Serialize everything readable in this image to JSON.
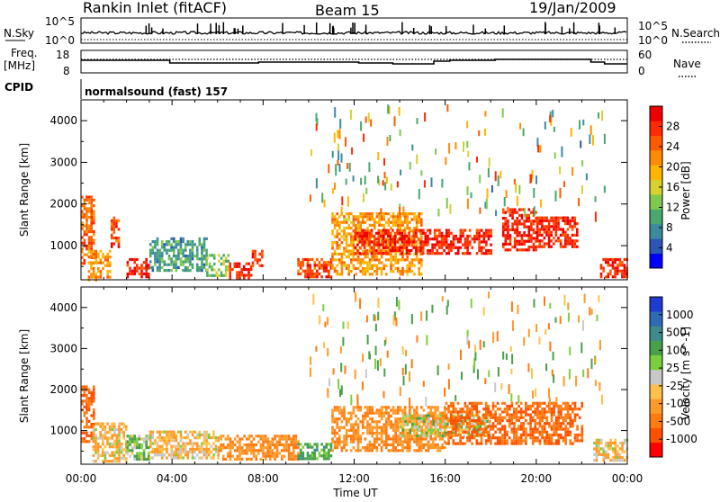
{
  "header": {
    "station": "Rankin Inlet (fitACF)",
    "beam": "Beam 15",
    "date": "19/Jan/2009"
  },
  "strip": {
    "nsky_label": "N.Sky",
    "nsky_ticks": [
      "10^5",
      "10^0"
    ],
    "nsearch_label": "N.Search",
    "nsearch_ticks": [
      "10^5",
      "10^0"
    ],
    "freq_label_1": "Freq.",
    "freq_label_2": "[MHz]",
    "freq_ticks": [
      "18",
      "8"
    ],
    "nave_label": "Nave",
    "nave_ticks": [
      "60",
      "0"
    ],
    "cpid_label": "CPID",
    "cpid_text": "normalsound (fast) 157"
  },
  "axes": {
    "ylabel": "Slant Range [km]",
    "xlabel": "Time UT",
    "xticks": [
      "00:00",
      "04:00",
      "08:00",
      "12:00",
      "16:00",
      "20:00",
      "00:00"
    ],
    "yticks": [
      "4000",
      "3000",
      "2000",
      "1000"
    ]
  },
  "colorbars": {
    "power": {
      "label": "Power [dB]",
      "ticks": [
        "28",
        "24",
        "20",
        "16",
        "12",
        "8",
        "4"
      ],
      "colors": [
        "#0000ff",
        "#2b56b6",
        "#3b8aa0",
        "#48a86e",
        "#7fc94e",
        "#d7d22e",
        "#ffb400",
        "#ff8c00",
        "#ff5a00",
        "#ff2a00",
        "#ee0000"
      ]
    },
    "velocity": {
      "label": "Velocity [m s^-1]",
      "ticks": [
        "1000",
        "500",
        "100",
        "25",
        "-25",
        "-100",
        "-500",
        "-1000"
      ],
      "colors": [
        "#1e3cd0",
        "#2e6ab5",
        "#3c8c8c",
        "#48a048",
        "#7ad03c",
        "#c8c8c8",
        "#ffc04a",
        "#ff9a28",
        "#ff7a10",
        "#ff5000",
        "#ff0000"
      ]
    }
  },
  "chart_data": [
    {
      "type": "heatmap",
      "name": "power",
      "ylabel": "Slant Range [km]",
      "xlabel": "Time UT",
      "xlim": [
        0,
        24
      ],
      "ylim": [
        180,
        4500
      ],
      "x_tick_labels": [
        "00:00",
        "04:00",
        "08:00",
        "12:00",
        "16:00",
        "20:00",
        "00:00"
      ],
      "y_tick_labels": [
        "4000",
        "3000",
        "2000",
        "1000"
      ],
      "colorbar": "Power [dB]",
      "colorbar_ticks": [
        28,
        24,
        20,
        16,
        12,
        8,
        4
      ],
      "regions": [
        {
          "t": [
            0.0,
            0.6
          ],
          "r": [
            600,
            2200
          ],
          "value": 24
        },
        {
          "t": [
            0.3,
            1.3
          ],
          "r": [
            200,
            900
          ],
          "value": 20
        },
        {
          "t": [
            1.3,
            1.7
          ],
          "r": [
            1000,
            1700
          ],
          "value": 26
        },
        {
          "t": [
            2.0,
            3.0
          ],
          "r": [
            250,
            700
          ],
          "value": 28
        },
        {
          "t": [
            3.0,
            5.5
          ],
          "r": [
            400,
            1200
          ],
          "value": 8
        },
        {
          "t": [
            5.5,
            6.5
          ],
          "r": [
            300,
            800
          ],
          "value": 12
        },
        {
          "t": [
            6.5,
            7.5
          ],
          "r": [
            200,
            600
          ],
          "value": 28
        },
        {
          "t": [
            7.5,
            8.0
          ],
          "r": [
            500,
            900
          ],
          "value": 26
        },
        {
          "t": [
            9.5,
            11.0
          ],
          "r": [
            250,
            700
          ],
          "value": 26
        },
        {
          "t": [
            11.0,
            15.0
          ],
          "r": [
            300,
            1800
          ],
          "value": 20
        },
        {
          "t": [
            12.0,
            18.0
          ],
          "r": [
            800,
            1400
          ],
          "value": 28
        },
        {
          "t": [
            18.5,
            20.0
          ],
          "r": [
            900,
            1900
          ],
          "value": 28
        },
        {
          "t": [
            20.0,
            21.8
          ],
          "r": [
            1000,
            1700
          ],
          "value": 28
        },
        {
          "t": [
            22.8,
            24.0
          ],
          "r": [
            250,
            700
          ],
          "value": 28
        }
      ]
    },
    {
      "type": "heatmap",
      "name": "velocity",
      "ylabel": "Slant Range [km]",
      "xlabel": "Time UT",
      "xlim": [
        0,
        24
      ],
      "ylim": [
        180,
        4500
      ],
      "x_tick_labels": [
        "00:00",
        "04:00",
        "08:00",
        "12:00",
        "16:00",
        "20:00",
        "00:00"
      ],
      "y_tick_labels": [
        "4000",
        "3000",
        "2000",
        "1000"
      ],
      "colorbar": "Velocity [m s^-1]",
      "colorbar_ticks": [
        1000,
        500,
        100,
        25,
        -25,
        -100,
        -500,
        -1000
      ],
      "regions": [
        {
          "t": [
            0.0,
            0.6
          ],
          "r": [
            700,
            2100
          ],
          "value": -500
        },
        {
          "t": [
            0.5,
            2.0
          ],
          "r": [
            250,
            1200
          ],
          "value": -100
        },
        {
          "t": [
            2.0,
            3.0
          ],
          "r": [
            300,
            900
          ],
          "value": 100
        },
        {
          "t": [
            3.0,
            6.0
          ],
          "r": [
            300,
            1000
          ],
          "value": -100
        },
        {
          "t": [
            6.0,
            9.5
          ],
          "r": [
            300,
            900
          ],
          "value": -300
        },
        {
          "t": [
            9.5,
            11.0
          ],
          "r": [
            300,
            700
          ],
          "value": 200
        },
        {
          "t": [
            11.0,
            16.0
          ],
          "r": [
            500,
            1600
          ],
          "value": -300
        },
        {
          "t": [
            14.0,
            18.0
          ],
          "r": [
            900,
            1400
          ],
          "value": 0
        },
        {
          "t": [
            16.0,
            22.0
          ],
          "r": [
            700,
            1700
          ],
          "value": -500
        },
        {
          "t": [
            22.5,
            24.0
          ],
          "r": [
            250,
            800
          ],
          "value": -100
        }
      ]
    }
  ]
}
